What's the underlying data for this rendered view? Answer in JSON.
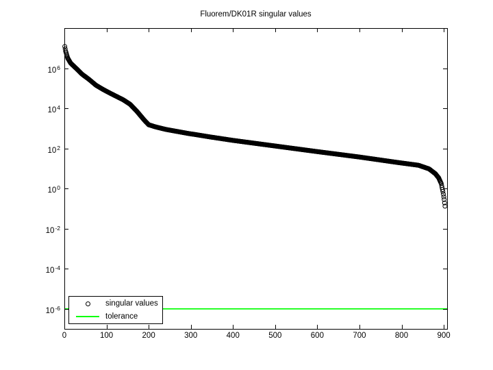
{
  "figure": {
    "background": "#ffffff",
    "axis_color": "#000000"
  },
  "chart_data": {
    "type": "scatter",
    "title": "Fluorem/DK01R singular values",
    "xlabel": "",
    "ylabel": "",
    "y_scale": "log",
    "grid": false,
    "xlim": [
      0,
      908
    ],
    "ylim_log10": [
      -7,
      8
    ],
    "x_ticks": [
      0,
      100,
      200,
      300,
      400,
      500,
      600,
      700,
      800,
      900
    ],
    "y_tick_exponents": [
      6,
      4,
      2,
      0,
      -2,
      -4,
      -6
    ],
    "legend_position": "southwest",
    "series": [
      {
        "name": "singular values",
        "type": "scatter",
        "marker": "circle",
        "color": "#000000",
        "marker_size_px": 7,
        "n_points": 903,
        "control_points_log10": [
          [
            1,
            7.08
          ],
          [
            3,
            6.85
          ],
          [
            8,
            6.5
          ],
          [
            15,
            6.25
          ],
          [
            30,
            5.95
          ],
          [
            42,
            5.7
          ],
          [
            58,
            5.45
          ],
          [
            75,
            5.15
          ],
          [
            91,
            4.95
          ],
          [
            107,
            4.77
          ],
          [
            123,
            4.6
          ],
          [
            140,
            4.42
          ],
          [
            156,
            4.2
          ],
          [
            172,
            3.85
          ],
          [
            190,
            3.4
          ],
          [
            200,
            3.18
          ],
          [
            215,
            3.08
          ],
          [
            240,
            2.95
          ],
          [
            290,
            2.76
          ],
          [
            340,
            2.59
          ],
          [
            400,
            2.4
          ],
          [
            500,
            2.12
          ],
          [
            600,
            1.84
          ],
          [
            700,
            1.57
          ],
          [
            790,
            1.3
          ],
          [
            840,
            1.16
          ],
          [
            865,
            0.98
          ],
          [
            880,
            0.74
          ],
          [
            888,
            0.53
          ],
          [
            894,
            0.25
          ],
          [
            898,
            -0.15
          ],
          [
            901,
            -0.55
          ],
          [
            903,
            -0.88
          ]
        ]
      },
      {
        "name": "tolerance",
        "type": "hline",
        "color": "#00ff00",
        "value": 1e-06
      }
    ]
  },
  "legend": {
    "entries": [
      {
        "label": "singular values",
        "marker": "circle-marker",
        "color": "#000000"
      },
      {
        "label": "tolerance",
        "marker": "line-marker",
        "color": "#00ff00"
      }
    ]
  }
}
